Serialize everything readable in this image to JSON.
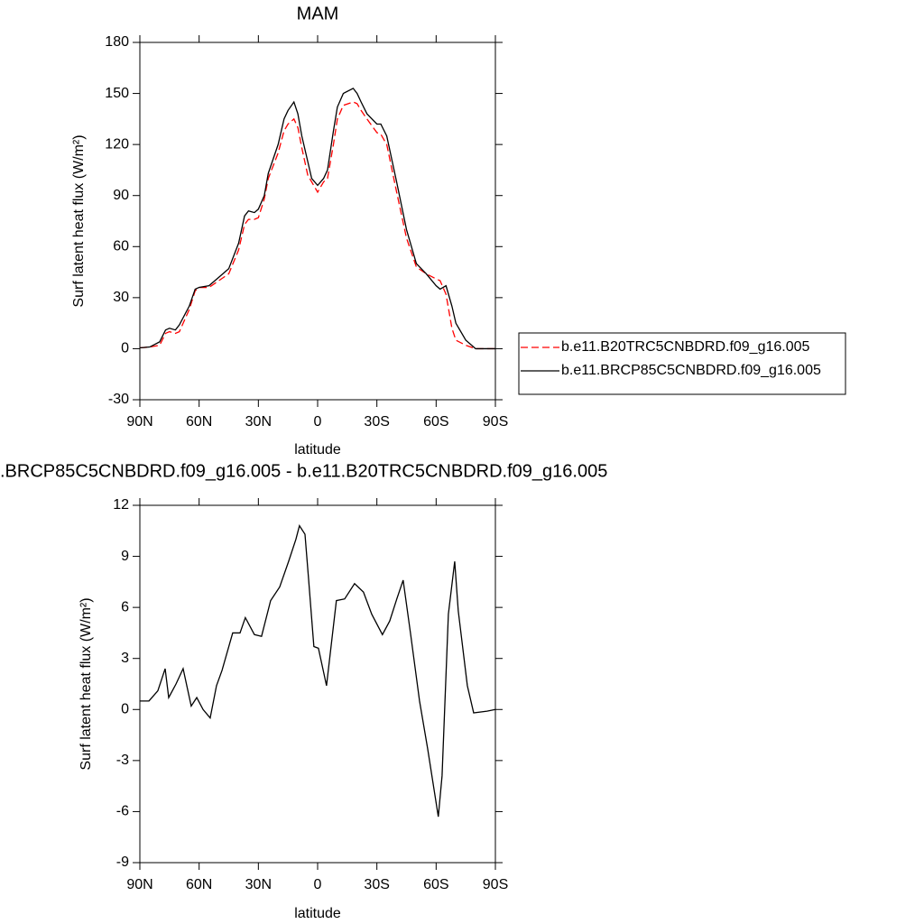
{
  "chart_data": [
    {
      "type": "line",
      "title": "MAM",
      "xlabel": "latitude",
      "ylabel": "Surf latent heat flux (W/m²)",
      "x": [
        90,
        85,
        80,
        77,
        75,
        72,
        70,
        65,
        62,
        60,
        55,
        50,
        45,
        40,
        37,
        35,
        32,
        30,
        27,
        25,
        20,
        17,
        15,
        12,
        10,
        8,
        5,
        3,
        0,
        -3,
        -5,
        -8,
        -10,
        -13,
        -18,
        -20,
        -22,
        -25,
        -30,
        -32,
        -35,
        -40,
        -45,
        -50,
        -55,
        -60,
        -62,
        -65,
        -68,
        -70,
        -75,
        -80,
        -85,
        -90
      ],
      "series": [
        {
          "name": "b.e11.B20TRC5CNBDRD.f09_g16.005",
          "color": "#ff0000",
          "line_style": "dashed",
          "values": [
            0.5,
            1,
            2,
            9,
            10,
            9,
            10,
            23,
            34,
            36,
            36,
            40,
            44,
            58,
            73,
            76,
            76,
            77,
            88,
            100,
            115,
            128,
            132,
            135,
            130,
            118,
            102,
            98,
            92,
            98,
            100,
            120,
            135,
            143,
            145,
            144,
            140,
            135,
            127,
            126,
            120,
            92,
            65,
            48,
            44,
            41,
            40,
            32,
            12,
            5,
            2,
            0,
            0,
            0
          ]
        },
        {
          "name": "b.e11.BRCP85C5CNBDRD.f09_g16.005",
          "color": "#000000",
          "line_style": "solid",
          "values": [
            0.5,
            1,
            4,
            11,
            12,
            11,
            14,
            25,
            35,
            36,
            37,
            42,
            47,
            62,
            78,
            81,
            80,
            82,
            90,
            103,
            120,
            135,
            140,
            145,
            138,
            125,
            110,
            100,
            96,
            100,
            105,
            128,
            142,
            150,
            153,
            150,
            145,
            138,
            132,
            132,
            125,
            98,
            70,
            50,
            44,
            37,
            35,
            37,
            25,
            15,
            5,
            0,
            0,
            0
          ]
        }
      ],
      "xlim": [
        90,
        -90
      ],
      "xticks": [
        {
          "value": 90,
          "label": "90N"
        },
        {
          "value": 60,
          "label": "60N"
        },
        {
          "value": 30,
          "label": "30N"
        },
        0,
        {
          "value": -30,
          "label": "30S"
        },
        {
          "value": -60,
          "label": "60S"
        },
        {
          "value": -90,
          "label": "90S"
        }
      ],
      "ylim": [
        -30,
        180
      ],
      "yticks": [
        -30,
        0,
        30,
        60,
        90,
        120,
        150,
        180
      ]
    },
    {
      "type": "line",
      "title": ".BRCP85C5CNBDRD.f09_g16.005 - b.e11.B20TRC5CNBDRD.f09_g16.005",
      "xlabel": "latitude",
      "ylabel": "Surf latent heat flux (W/m²)",
      "x": [
        90,
        85.4,
        80.9,
        77.2,
        75.4,
        71.7,
        68.1,
        64,
        61.2,
        58,
        54.4,
        51.2,
        48.4,
        43,
        39.3,
        36.6,
        32,
        28.4,
        23.8,
        19.2,
        14.7,
        11,
        9.2,
        6.4,
        4.6,
        1.9,
        -0.4,
        -4.5,
        -9.5,
        -13.7,
        -18.7,
        -23.2,
        -27.4,
        -32.8,
        -36.5,
        -40.1,
        -43.3,
        -47,
        -51.6,
        -55.7,
        -61.1,
        -63,
        -66.2,
        -69.4,
        -71.2,
        -75.8,
        -79,
        -85.8,
        -90
      ],
      "color": "#000000",
      "values": [
        0.5,
        0.5,
        1.1,
        2.4,
        0.7,
        1.5,
        2.4,
        0.2,
        0.7,
        0,
        -0.5,
        1.4,
        2.3,
        4.5,
        4.5,
        5.4,
        4.4,
        4.3,
        6.4,
        7.2,
        8.7,
        10,
        10.8,
        10.3,
        7.7,
        3.7,
        3.6,
        1.4,
        6.4,
        6.5,
        7.4,
        6.9,
        5.6,
        4.4,
        5.2,
        6.5,
        7.6,
        4.5,
        0.5,
        -2.3,
        -6.3,
        -3.9,
        5.6,
        8.7,
        5.8,
        1.4,
        -0.2,
        -0.1,
        0
      ],
      "xlim": [
        90,
        -90
      ],
      "xticks": [
        {
          "value": 90,
          "label": "90N"
        },
        {
          "value": 60,
          "label": "60N"
        },
        {
          "value": 30,
          "label": "30N"
        },
        0,
        {
          "value": -30,
          "label": "30S"
        },
        {
          "value": -60,
          "label": "60S"
        },
        {
          "value": -90,
          "label": "90S"
        }
      ],
      "ylim": [
        -9,
        12
      ],
      "yticks": [
        -9,
        -6,
        -3,
        0,
        3,
        6,
        9,
        12
      ]
    }
  ]
}
